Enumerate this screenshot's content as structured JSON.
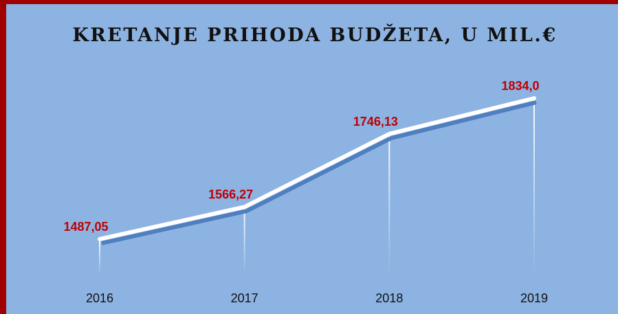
{
  "chart_data": {
    "type": "line",
    "title": "KRETANJE PRIHODA BUDŽETA, U MIL.€",
    "categories": [
      "2016",
      "2017",
      "2018",
      "2019"
    ],
    "series": [
      {
        "name": null,
        "color": "#ffffff",
        "values": [
          1487.05,
          1566.27,
          1746.13,
          1834.0
        ],
        "value_labels": [
          "1487,05",
          "1566,27",
          "1746,13",
          "1834,0"
        ]
      }
    ]
  }
}
